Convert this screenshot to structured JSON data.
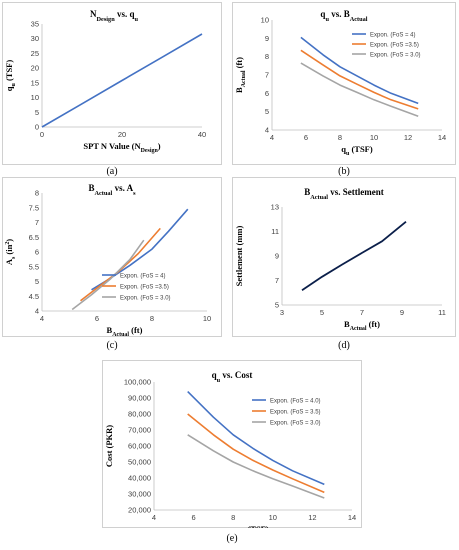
{
  "colors": {
    "blue": "#4472c4",
    "orange": "#ed7d31",
    "gray": "#a5a5a5",
    "navy": "#0b1f4a"
  },
  "captions": {
    "a": "(a)",
    "b": "(b)",
    "c": "(c)",
    "d": "(d)",
    "e": "(e)"
  },
  "chart_data": [
    {
      "id": "a",
      "type": "line",
      "title": {
        "main": "N",
        "sub1": "Design",
        "mid": " vs. q",
        "sub2": "u"
      },
      "xlabel": {
        "main": "SPT N Value (N",
        "sub": "Design",
        "tail": ")"
      },
      "ylabel": {
        "main": "q",
        "sub": "u",
        "tail": " (TSF)"
      },
      "xlim": [
        0,
        40
      ],
      "ylim": [
        0,
        35
      ],
      "xticks": [
        0,
        20,
        40
      ],
      "yticks": [
        0,
        5,
        10,
        15,
        20,
        25,
        30,
        35
      ],
      "series": [
        {
          "x": [
            0,
            10,
            20,
            30,
            40
          ],
          "y": [
            0,
            7.9,
            15.8,
            23.7,
            31.6
          ]
        }
      ]
    },
    {
      "id": "b",
      "type": "line",
      "title": {
        "main": "q",
        "sub1": "u",
        "mid": " vs. B",
        "sub2": "Actual"
      },
      "xlabel": {
        "main": "q",
        "sub": "u",
        "tail": " (TSF)"
      },
      "ylabel": {
        "main": "B",
        "sub": "Actual",
        "tail": " (ft)"
      },
      "xlim": [
        4,
        14
      ],
      "ylim": [
        4,
        10
      ],
      "xticks": [
        4,
        6,
        8,
        10,
        12,
        14
      ],
      "yticks": [
        4,
        5,
        6,
        7,
        8,
        9,
        10
      ],
      "legend_position": "top-right",
      "series": [
        {
          "name": "Expon. (FoS = 4)",
          "color": "#4472c4",
          "x": [
            5.7,
            7,
            8,
            9,
            10,
            11,
            12.6
          ],
          "y": [
            9.05,
            8.1,
            7.45,
            6.95,
            6.45,
            6.0,
            5.45
          ]
        },
        {
          "name": "Expon. (FoS =3.5)",
          "color": "#ed7d31",
          "x": [
            5.7,
            7,
            8,
            9,
            10,
            11,
            12.6
          ],
          "y": [
            8.35,
            7.55,
            6.95,
            6.5,
            6.05,
            5.65,
            5.15
          ]
        },
        {
          "name": "Expon. (FoS = 3.0)",
          "color": "#a5a5a5",
          "x": [
            5.7,
            7,
            8,
            9,
            10,
            11,
            12.6
          ],
          "y": [
            7.65,
            6.95,
            6.45,
            6.05,
            5.65,
            5.3,
            4.75
          ]
        }
      ]
    },
    {
      "id": "c",
      "type": "line",
      "title": {
        "main": "B",
        "sub1": "Actual",
        "mid": " vs. A",
        "sub2": "s"
      },
      "xlabel": {
        "main": "B",
        "sub": "Actual",
        "tail": " (ft)"
      },
      "ylabel": {
        "main": "A",
        "sub": "s",
        "tail": " (in",
        "sup": "2",
        "close": ")"
      },
      "xlim": [
        4,
        10
      ],
      "ylim": [
        4,
        8
      ],
      "xticks": [
        4,
        6,
        8,
        10
      ],
      "yticks": [
        4,
        4.5,
        5,
        5.5,
        6,
        6.5,
        7,
        7.5,
        8
      ],
      "legend_position": "bottom-right",
      "series": [
        {
          "name": "Expon. (FoS = 4)",
          "color": "#4472c4",
          "x": [
            5.8,
            6.5,
            7.2,
            8,
            8.6,
            9.3
          ],
          "y": [
            4.72,
            5.12,
            5.55,
            6.1,
            6.7,
            7.45
          ]
        },
        {
          "name": "Expon. (FoS =3.5)",
          "color": "#ed7d31",
          "x": [
            5.4,
            6,
            6.8,
            7.5,
            8.3
          ],
          "y": [
            4.35,
            4.78,
            5.35,
            5.95,
            6.8
          ]
        },
        {
          "name": "Expon. (FoS = 3.0)",
          "color": "#a5a5a5",
          "x": [
            5.1,
            5.8,
            6.5,
            7.2,
            7.7
          ],
          "y": [
            4.05,
            4.55,
            5.1,
            5.75,
            6.4
          ]
        }
      ]
    },
    {
      "id": "d",
      "type": "line",
      "title": {
        "main": "B",
        "sub1": "Actual",
        "mid": " vs. Settlement",
        "sub2": ""
      },
      "xlabel": {
        "main": "B",
        "sub": "Actual",
        "tail": " (ft)"
      },
      "ylabel": {
        "main": "Settlement (mm)",
        "sub": "",
        "tail": ""
      },
      "xlim": [
        3,
        11
      ],
      "ylim": [
        5,
        13
      ],
      "xticks": [
        3,
        5,
        7,
        9,
        11
      ],
      "yticks": [
        5,
        7,
        9,
        11,
        13
      ],
      "series": [
        {
          "color": "#0b1f4a",
          "x": [
            4,
            5,
            6,
            7,
            8,
            9.2
          ],
          "y": [
            6.2,
            7.3,
            8.3,
            9.25,
            10.2,
            11.8
          ]
        }
      ]
    },
    {
      "id": "e",
      "type": "line",
      "title": {
        "main": "q",
        "sub1": "u",
        "mid": " vs. Cost",
        "sub2": ""
      },
      "xlabel": {
        "main": "q",
        "sub": "u",
        "tail": " (TSF)"
      },
      "ylabel": {
        "main": "Cost (PKR)",
        "sub": "",
        "tail": ""
      },
      "xlim": [
        4,
        14
      ],
      "ylim": [
        20000,
        100000
      ],
      "xticks": [
        4,
        6,
        8,
        10,
        12,
        14
      ],
      "yticks": [
        20000,
        30000,
        40000,
        50000,
        60000,
        70000,
        80000,
        90000,
        100000
      ],
      "ytick_labels": [
        "20,000",
        "30,000",
        "40,000",
        "50,000",
        "60,000",
        "70,000",
        "80,000",
        "90,000",
        "100,000"
      ],
      "legend_position": "top-right",
      "series": [
        {
          "name": "Expon. (FoS = 4.0)",
          "color": "#4472c4",
          "x": [
            5.7,
            7,
            8,
            9,
            10,
            11,
            12.6
          ],
          "y": [
            94000,
            78000,
            67000,
            58500,
            51000,
            44500,
            36000
          ]
        },
        {
          "name": "Expon. (FoS = 3.5)",
          "color": "#ed7d31",
          "x": [
            5.7,
            7,
            8,
            9,
            10,
            11,
            12.6
          ],
          "y": [
            80000,
            67000,
            58000,
            51000,
            45000,
            39500,
            31000
          ]
        },
        {
          "name": "Expon. (FoS = 3.0)",
          "color": "#a5a5a5",
          "x": [
            5.7,
            7,
            8,
            9,
            10,
            11,
            12.6
          ],
          "y": [
            67000,
            57000,
            50000,
            44500,
            39500,
            35000,
            27500
          ]
        }
      ]
    }
  ]
}
